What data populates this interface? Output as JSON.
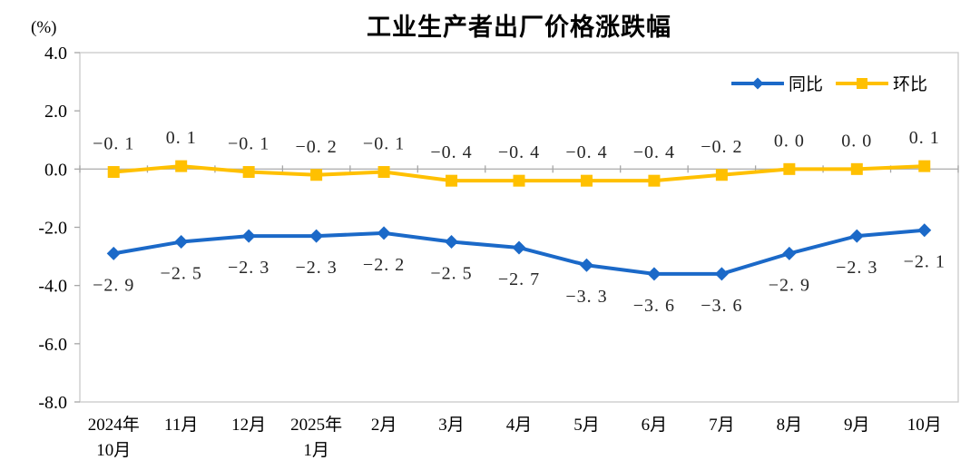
{
  "title": "工业生产者出厂价格涨跌幅",
  "unit_label": "(%)",
  "legend": [
    {
      "id": "yoy",
      "name": "同比",
      "color": "#1B69C8",
      "marker": "diamond"
    },
    {
      "id": "mom",
      "name": "环比",
      "color": "#FFC000",
      "marker": "square"
    }
  ],
  "colors": {
    "plot_border": "#C9C9C9",
    "zero_axis": "#B3B3B3",
    "tick": "#A6A6A6",
    "yoy_blue": "#1B69C8",
    "mom_gold": "#FFC000",
    "text": "#000000",
    "data_label": "#262626",
    "background": "#FFFFFF"
  },
  "chart_data": {
    "type": "line",
    "title": "工业生产者出厂价格涨跌幅",
    "ylabel": "(%)",
    "xlabel": "",
    "ylim": [
      -8.0,
      4.0
    ],
    "ytick_values": [
      4.0,
      2.0,
      0.0,
      -2.0,
      -4.0,
      -6.0,
      -8.0
    ],
    "ytick_labels": [
      "4.0",
      "2.0",
      "0.0",
      "-2.0",
      "-4.0",
      "-6.0",
      "-8.0"
    ],
    "grid": false,
    "legend_position": "top-right",
    "categories": [
      [
        "2024年",
        "10月"
      ],
      [
        "11月"
      ],
      [
        "12月"
      ],
      [
        "2025年",
        "1月"
      ],
      [
        "2月"
      ],
      [
        "3月"
      ],
      [
        "4月"
      ],
      [
        "5月"
      ],
      [
        "6月"
      ],
      [
        "7月"
      ],
      [
        "8月"
      ],
      [
        "9月"
      ],
      [
        "10月"
      ]
    ],
    "series": [
      {
        "id": "yoy",
        "name": "同比",
        "color": "#1B69C8",
        "marker": "diamond",
        "label_position": "below",
        "values": [
          -2.9,
          -2.5,
          -2.3,
          -2.3,
          -2.2,
          -2.5,
          -2.7,
          -3.3,
          -3.6,
          -3.6,
          -2.9,
          -2.3,
          -2.1
        ],
        "labels": [
          "−2. 9",
          "−2. 5",
          "−2. 3",
          "−2. 3",
          "−2. 2",
          "−2. 5",
          "−2. 7",
          "−3. 3",
          "−3. 6",
          "−3. 6",
          "−2. 9",
          "−2. 3",
          "−2. 1"
        ]
      },
      {
        "id": "mom",
        "name": "环比",
        "color": "#FFC000",
        "marker": "square",
        "label_position": "above",
        "values": [
          -0.1,
          0.1,
          -0.1,
          -0.2,
          -0.1,
          -0.4,
          -0.4,
          -0.4,
          -0.4,
          -0.2,
          0.0,
          0.0,
          0.1
        ],
        "labels": [
          "−0. 1",
          "0. 1",
          "−0. 1",
          "−0. 2",
          "−0. 1",
          "−0. 4",
          "−0. 4",
          "−0. 4",
          "−0. 4",
          "−0. 2",
          "0. 0",
          "0. 0",
          "0. 1"
        ]
      }
    ]
  }
}
